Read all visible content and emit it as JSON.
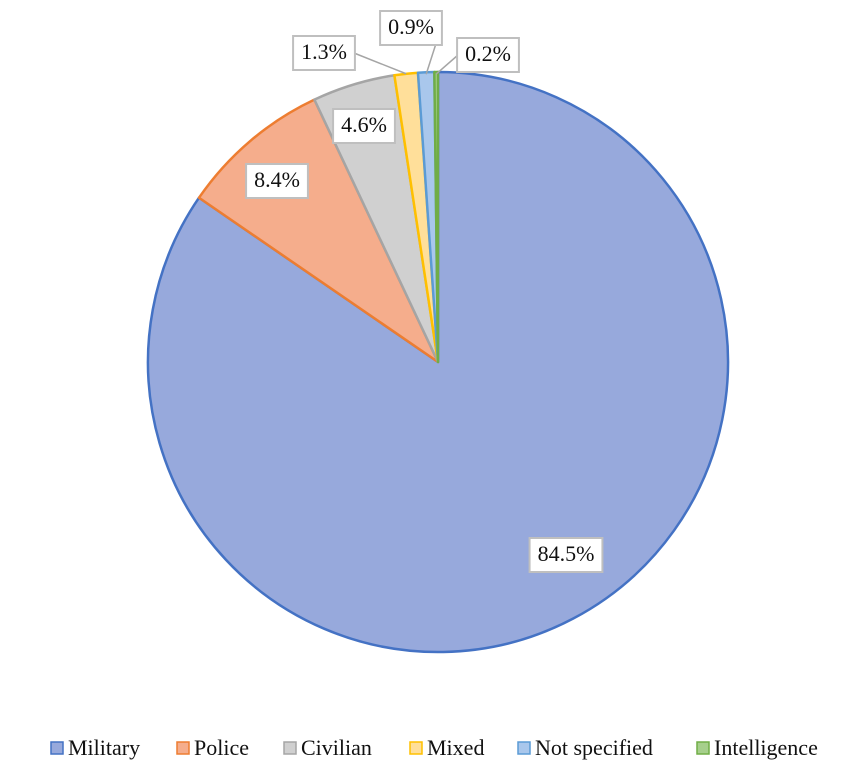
{
  "chart_data": {
    "type": "pie",
    "categories": [
      "Military",
      "Police",
      "Civilian",
      "Mixed",
      "Not specified",
      "Intelligence"
    ],
    "values": [
      84.5,
      8.4,
      4.6,
      1.3,
      0.9,
      0.2
    ],
    "value_labels": [
      "84.5%",
      "8.4%",
      "4.6%",
      "1.3%",
      "0.9%",
      "0.2%"
    ],
    "colors": [
      "#97a9dc",
      "#f5ad8c",
      "#d0d0d0",
      "#ffdf9a",
      "#a9c7ec",
      "#a6cf8c"
    ],
    "edge_colors": [
      "#4472c4",
      "#ed7d31",
      "#a5a5a5",
      "#ffc000",
      "#5b9bd5",
      "#70ad47"
    ],
    "legend": "bottom"
  }
}
